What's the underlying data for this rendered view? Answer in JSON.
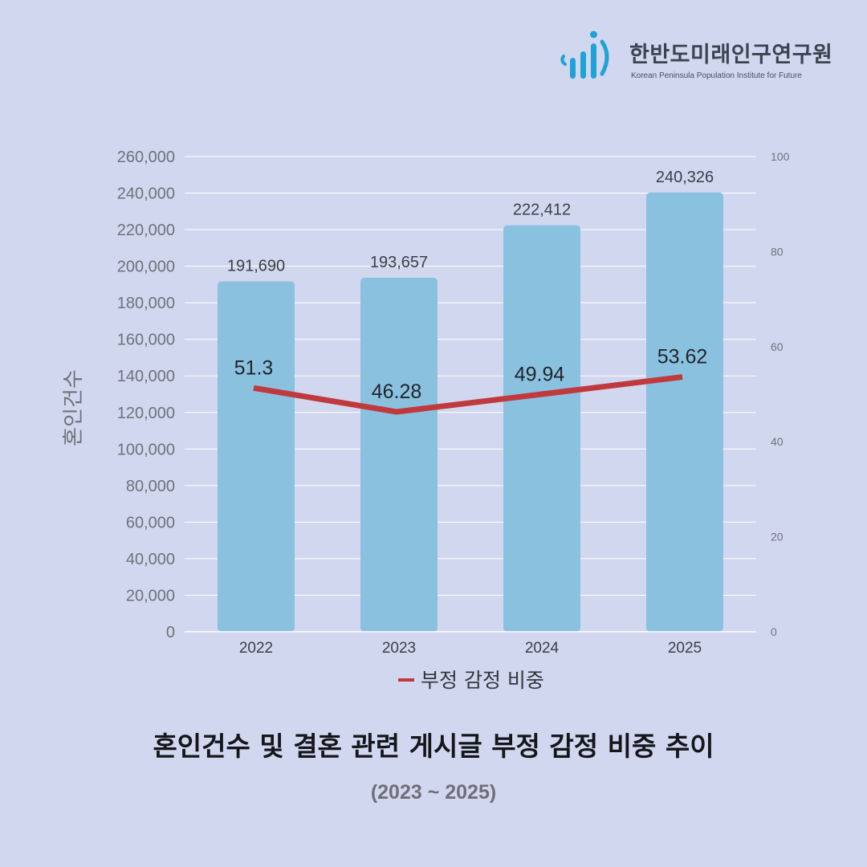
{
  "org": {
    "name": "한반도미래인구연구원",
    "name_en": "Korean Peninsula Population Institute for Future"
  },
  "title": "혼인건수 및 결혼 관련 게시글 부정 감정 비중 추이",
  "subtitle": "(2023 ~ 2025)",
  "colors": {
    "background": "#d1d7ef",
    "bar": "#89c1df",
    "line": "#c0393d",
    "logo": "#1fa3d6"
  },
  "chart_data": {
    "type": "bar+line",
    "categories": [
      "2022",
      "2023",
      "2024",
      "2025"
    ],
    "y_left": {
      "label": "혼인건수",
      "range": [
        0,
        260000
      ],
      "ticks": [
        "0",
        "20,000",
        "40,000",
        "60,000",
        "80,000",
        "100,000",
        "120,000",
        "140,000",
        "160,000",
        "180,000",
        "200,000",
        "220,000",
        "240,000",
        "260,000"
      ]
    },
    "y_right": {
      "range": [
        0,
        100
      ],
      "ticks": [
        "0",
        "20",
        "40",
        "60",
        "80",
        "100"
      ]
    },
    "grid": true,
    "bars": {
      "values": [
        191690,
        193657,
        222412,
        240326
      ],
      "labels": [
        "191,690",
        "193,657",
        "222,412",
        "240,326"
      ]
    },
    "line": {
      "name": "부정 감정 비중",
      "axis": "right",
      "values": [
        51.3,
        46.28,
        49.94,
        53.62
      ],
      "labels": [
        "51.3",
        "46.28",
        "49.94",
        "53.62"
      ]
    },
    "legend_position": "bottom"
  }
}
